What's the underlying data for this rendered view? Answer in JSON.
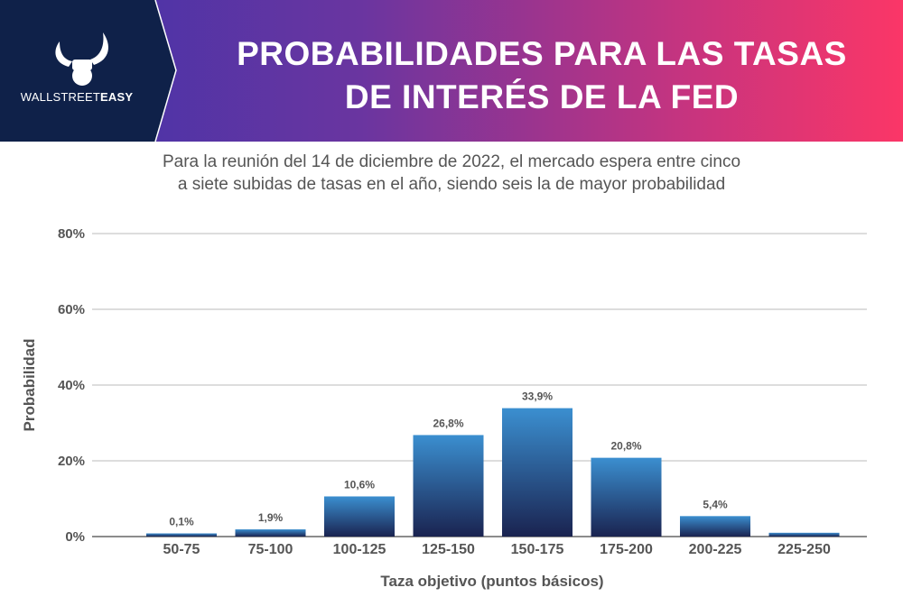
{
  "header": {
    "title_line1": "PROBABILIDADES PARA LAS TASAS",
    "title_line2": "DE INTERÉS DE LA FED",
    "logo_light": "WALLSTREET",
    "logo_bold": "EASY",
    "logo_icon": "bull-horns-fist-icon"
  },
  "subtitle": {
    "line1": "Para la reunión del 14 de diciembre de 2022, el mercado espera entre cinco",
    "line2": "a siete subidas de tasas en el año, siendo seis la de mayor probabilidad"
  },
  "colors": {
    "bar_top": "#3b8fd0",
    "bar_bottom": "#1a2350",
    "grid": "#b8b8b8",
    "text": "#555555"
  },
  "chart_data": {
    "type": "bar",
    "categories": [
      "50-75",
      "75-100",
      "100-125",
      "125-150",
      "150-175",
      "175-200",
      "200-225",
      "225-250"
    ],
    "values": [
      0.1,
      1.9,
      10.6,
      26.8,
      33.9,
      20.8,
      5.4,
      1.0
    ],
    "data_labels": [
      "0,1%",
      "1,9%",
      "10,6%",
      "26,8%",
      "33,9%",
      "20,8%",
      "5,4%",
      ""
    ],
    "xlabel": "Taza objetivo (puntos básicos)",
    "ylabel": "Probabilidad",
    "ylim": [
      0,
      80
    ],
    "yticks": [
      0,
      20,
      40,
      60,
      80
    ],
    "ytick_labels": [
      "0%",
      "20%",
      "40%",
      "60%",
      "80%"
    ],
    "grid": true
  }
}
